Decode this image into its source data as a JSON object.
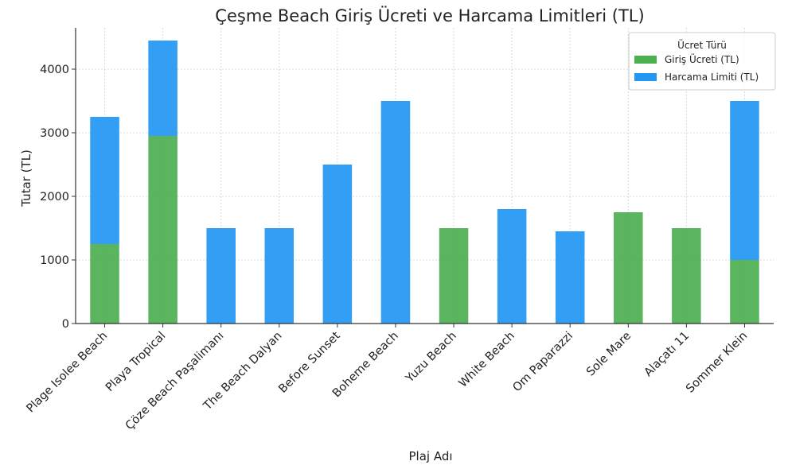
{
  "chart_data": {
    "type": "bar",
    "stacked": true,
    "title": "Çeşme Beach Giriş Ücreti ve Harcama Limitleri (TL)",
    "xlabel": "Plaj Adı",
    "ylabel": "Tutar (TL)",
    "ylim": [
      0,
      4650
    ],
    "yticks": [
      0,
      1000,
      2000,
      3000,
      4000
    ],
    "grid": true,
    "legend": {
      "title": "Ücret Türü",
      "placement": "top-right"
    },
    "categories": [
      "Plage Isolee Beach",
      "Playa Tropical",
      "Çöze Beach Paşalimanı",
      "The Beach Dalyan",
      "Before Sunset",
      "Boheme Beach",
      "Yuzu Beach",
      "White Beach",
      "Om Paparazzi",
      "Sole Mare",
      "Alaçatı 11",
      "Sommer Klein"
    ],
    "series": [
      {
        "name": "Giriş Ücreti (TL)",
        "color": "#4caf50",
        "values": [
          1250,
          2950,
          0,
          0,
          0,
          0,
          1500,
          0,
          0,
          1750,
          1500,
          1000
        ]
      },
      {
        "name": "Harcama Limiti (TL)",
        "color": "#2196f3",
        "values": [
          2000,
          1500,
          1500,
          1500,
          2500,
          3500,
          0,
          1800,
          1450,
          0,
          0,
          2500
        ]
      }
    ]
  }
}
